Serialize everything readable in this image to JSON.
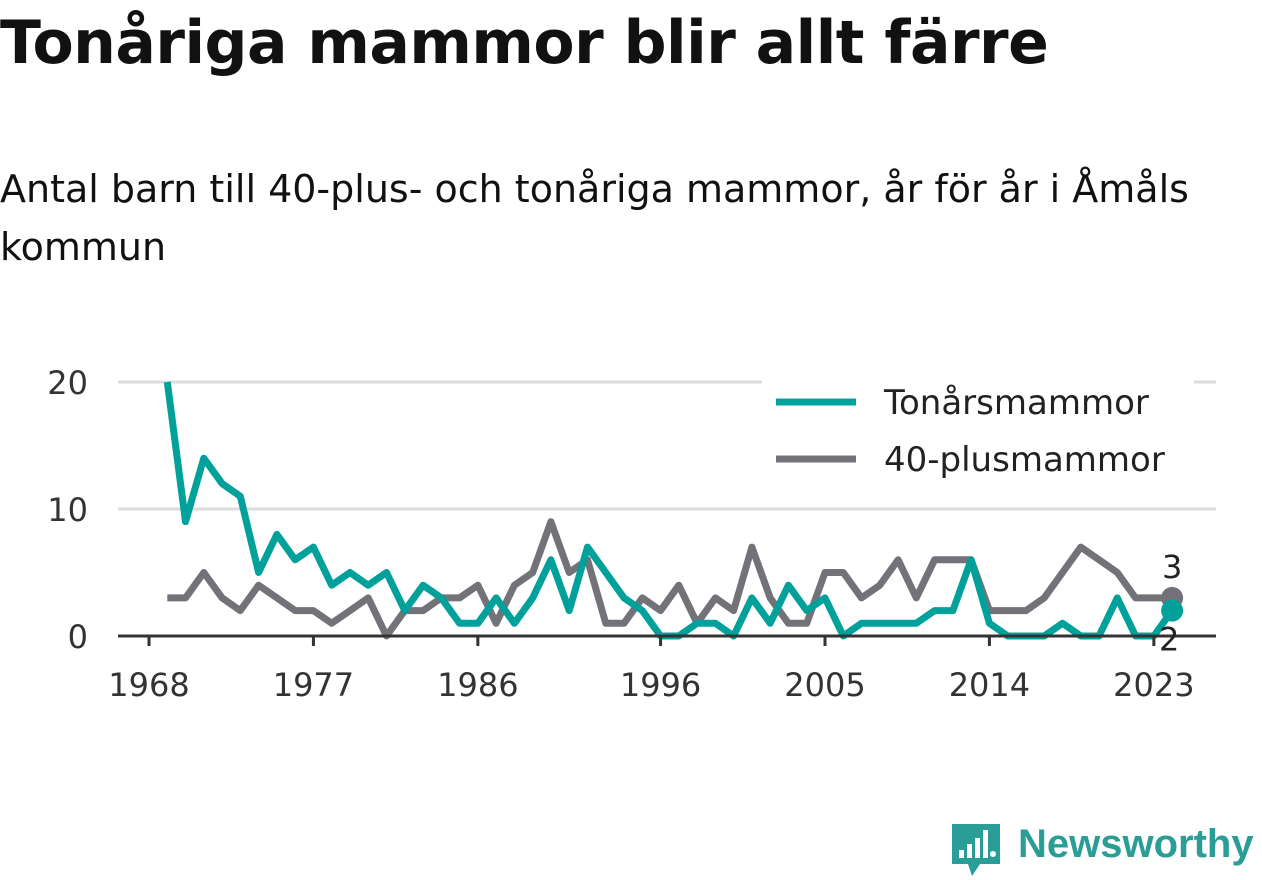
{
  "title": "Tonåriga mammor blir allt färre",
  "subtitle": "Antal barn till 40-plus- och tonåriga mammor, år för år i Åmåls kommun",
  "brand": {
    "name": "Newsworthy",
    "icon": "bar-chart-badge-icon"
  },
  "colors": {
    "teen": "#00a19a",
    "plus40": "#737278",
    "grid": "#dddddd",
    "axis": "#333333"
  },
  "chart_data": {
    "type": "line",
    "x": [
      1969,
      1970,
      1971,
      1972,
      1973,
      1974,
      1975,
      1976,
      1977,
      1978,
      1979,
      1980,
      1981,
      1982,
      1983,
      1984,
      1985,
      1986,
      1987,
      1988,
      1989,
      1990,
      1991,
      1992,
      1993,
      1994,
      1995,
      1996,
      1997,
      1998,
      1999,
      2000,
      2001,
      2002,
      2003,
      2004,
      2005,
      2006,
      2007,
      2008,
      2009,
      2010,
      2011,
      2012,
      2013,
      2014,
      2015,
      2016,
      2017,
      2018,
      2019,
      2020,
      2021,
      2022,
      2023,
      2024
    ],
    "series": [
      {
        "name": "Tonårsmammor",
        "color": "#00a19a",
        "values": [
          20,
          9,
          14,
          12,
          11,
          5,
          8,
          6,
          7,
          4,
          5,
          4,
          5,
          2,
          4,
          3,
          1,
          1,
          3,
          1,
          3,
          6,
          2,
          7,
          5,
          3,
          2,
          0,
          0,
          1,
          1,
          0,
          3,
          1,
          4,
          2,
          3,
          0,
          1,
          1,
          1,
          1,
          2,
          2,
          6,
          1,
          0,
          0,
          0,
          1,
          0,
          0,
          3,
          0,
          0,
          2
        ]
      },
      {
        "name": "40-plusmammor",
        "color": "#737278",
        "values": [
          3,
          3,
          5,
          3,
          2,
          4,
          3,
          2,
          2,
          1,
          2,
          3,
          0,
          2,
          2,
          3,
          3,
          4,
          1,
          4,
          5,
          9,
          5,
          6,
          1,
          1,
          3,
          2,
          4,
          1,
          3,
          2,
          7,
          3,
          1,
          1,
          5,
          5,
          3,
          4,
          6,
          3,
          6,
          6,
          6,
          2,
          2,
          2,
          3,
          5,
          7,
          6,
          5,
          3,
          3,
          3
        ]
      }
    ],
    "xticks": [
      "1968",
      "1977",
      "1986",
      "1996",
      "2005",
      "2014",
      "2023"
    ],
    "yticks": [
      "0",
      "10",
      "20"
    ],
    "ylim": [
      0,
      20
    ],
    "end_labels": [
      "2",
      "3"
    ],
    "legend_position": "top-right",
    "grid": true
  }
}
